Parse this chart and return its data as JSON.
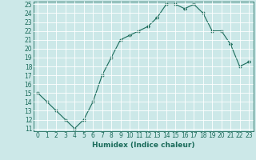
{
  "xlabel": "Humidex (Indice chaleur)",
  "ylabel": "",
  "x": [
    0,
    1,
    2,
    3,
    4,
    5,
    6,
    7,
    8,
    9,
    10,
    11,
    12,
    13,
    14,
    15,
    16,
    17,
    18,
    19,
    20,
    21,
    22,
    23
  ],
  "y": [
    15,
    14,
    13,
    12,
    11,
    12,
    14,
    17,
    19,
    21,
    21.5,
    22,
    22.5,
    23.5,
    25,
    25,
    24.5,
    25,
    24,
    22,
    22,
    20.5,
    18,
    18.5
  ],
  "line_color": "#1a6b5a",
  "marker": "D",
  "marker_size": 2.2,
  "bg_color": "#cce8e8",
  "grid_color": "#ffffff",
  "ylim": [
    11,
    25
  ],
  "xlim": [
    0,
    23
  ],
  "yticks": [
    11,
    12,
    13,
    14,
    15,
    16,
    17,
    18,
    19,
    20,
    21,
    22,
    23,
    24,
    25
  ],
  "xticks": [
    0,
    1,
    2,
    3,
    4,
    5,
    6,
    7,
    8,
    9,
    10,
    11,
    12,
    13,
    14,
    15,
    16,
    17,
    18,
    19,
    20,
    21,
    22,
    23
  ],
  "tick_fontsize": 5.5,
  "label_fontsize": 6.5,
  "axis_color": "#1a6b5a"
}
